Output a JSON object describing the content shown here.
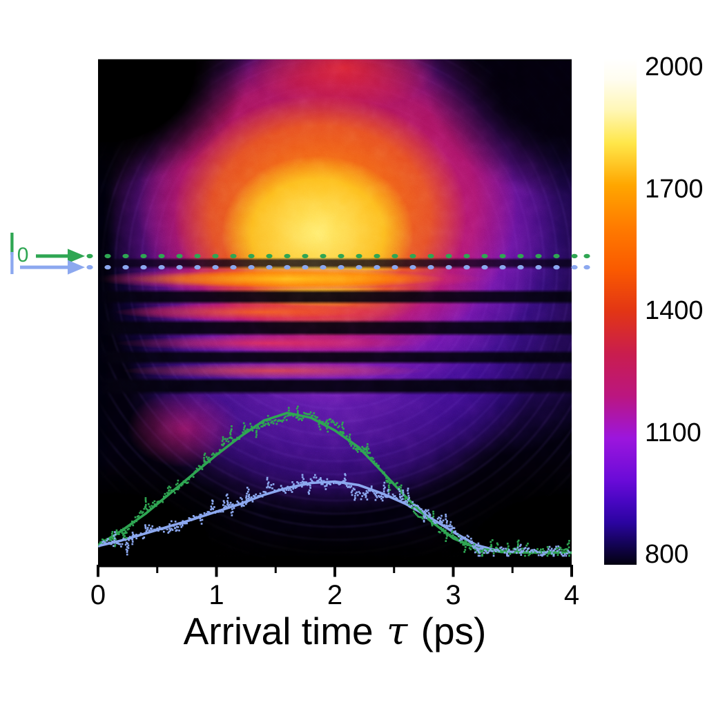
{
  "chart_data": {
    "type": "heatmap",
    "title": "",
    "xlabel": {
      "prefix": "Arrival time",
      "symbol": "τ",
      "suffix": "(ps)"
    },
    "x_range": [
      0,
      4
    ],
    "x_major_ticks": [
      0,
      1,
      2,
      3,
      4
    ],
    "x_minor_ticks": [
      0.5,
      1.5,
      2.5,
      3.5
    ],
    "grid": false,
    "colorbar": {
      "min": 800,
      "max": 2000,
      "tick_values": [
        2000,
        1700,
        1400,
        1100,
        800
      ],
      "tick_labels": [
        "2000",
        "1700",
        "1400",
        "1100",
        "800"
      ],
      "colormap": [
        {
          "v": 2000,
          "c": "#ffffff"
        },
        {
          "v": 1950,
          "c": "#fffdf0"
        },
        {
          "v": 1880,
          "c": "#fff7b8"
        },
        {
          "v": 1800,
          "c": "#ffe74a"
        },
        {
          "v": 1700,
          "c": "#ffa600"
        },
        {
          "v": 1600,
          "c": "#ff7b00"
        },
        {
          "v": 1500,
          "c": "#fa5a00"
        },
        {
          "v": 1400,
          "c": "#e23515"
        },
        {
          "v": 1300,
          "c": "#c91d4e"
        },
        {
          "v": 1200,
          "c": "#bb1680"
        },
        {
          "v": 1100,
          "c": "#9c16dd"
        },
        {
          "v": 1000,
          "c": "#6a0bd8"
        },
        {
          "v": 950,
          "c": "#4806c2"
        },
        {
          "v": 900,
          "c": "#2b04a0"
        },
        {
          "v": 850,
          "c": "#140357"
        },
        {
          "v": 800,
          "c": "#03010f"
        }
      ]
    },
    "annotations": {
      "i0": {
        "base": "I",
        "sub": "0",
        "color": "#2FA653",
        "row_y_frac": 0.389
      },
      "i": {
        "base": "I",
        "sub": "",
        "color": "#8CA8EF",
        "row_y_frac": 0.411
      }
    },
    "heatmap_features": [
      "bright circular emission region filling most of the frame, hottest core (~1900-2000) near τ≈1-2 ps in the upper half",
      "horizontal dark interference fringes across the middle of the image",
      "bright horizontal band at the I row just below the dotted markers",
      "purple halo fading to background level (~800) at the corners"
    ],
    "profiles": {
      "description": "Lineouts along the two dotted detector rows vs arrival time; smooth curves are fits, dots are measured data; vertical scale arbitrary, baseline at image bottom",
      "x": [
        0,
        0.2,
        0.4,
        0.6,
        0.8,
        1.0,
        1.2,
        1.4,
        1.6,
        1.8,
        2.0,
        2.2,
        2.4,
        2.6,
        2.8,
        3.0,
        3.2,
        3.4,
        3.6,
        3.8,
        4.0
      ],
      "series": [
        {
          "name": "I0",
          "color": "#2FA653",
          "peak_tau": 1.6,
          "amplitude_norm": [
            0.055,
            0.16,
            0.28,
            0.42,
            0.56,
            0.7,
            0.83,
            0.945,
            1.0,
            0.965,
            0.875,
            0.755,
            0.58,
            0.4,
            0.235,
            0.105,
            0.035,
            0.008,
            0.004,
            0.006,
            0.002
          ]
        },
        {
          "name": "I",
          "color": "#8CA8EF",
          "peak_tau": 2.0,
          "amplitude_norm": [
            0.05,
            0.09,
            0.14,
            0.19,
            0.24,
            0.295,
            0.35,
            0.415,
            0.465,
            0.5,
            0.51,
            0.485,
            0.425,
            0.35,
            0.255,
            0.15,
            0.055,
            0.012,
            0.004,
            0.006,
            0.002
          ]
        }
      ]
    }
  }
}
